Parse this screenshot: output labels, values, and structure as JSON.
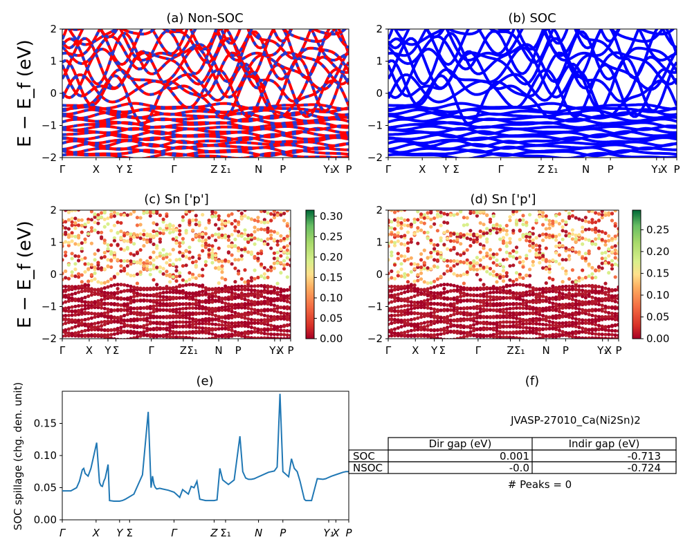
{
  "figure": {
    "titles": {
      "a": "(a) Non-SOC",
      "b": "(b) SOC",
      "c": "(c)  Sn ['p']",
      "d": "(d) Sn ['p']",
      "e": "(e)",
      "f": "(f)"
    },
    "band_ylabel": "E − E_f (eV)",
    "band_yticks": [
      "2",
      "1",
      "0",
      "−1",
      "−2"
    ],
    "kpath_labels": [
      "Γ",
      "X",
      "Y",
      "Σ",
      "Γ",
      "Z",
      "Σ₁",
      "N",
      "P",
      "Y₁",
      "X",
      "P"
    ],
    "colorbar_c_ticks": [
      "0.30",
      "0.25",
      "0.20",
      "0.15",
      "0.10",
      "0.05",
      "0.00"
    ],
    "colorbar_d_ticks": [
      "0.25",
      "0.20",
      "0.15",
      "0.10",
      "0.05",
      "0.00"
    ],
    "spillage_ylabel": "SOC spillage (chg. den. unit)",
    "spillage_yticks": [
      "0.15",
      "0.10",
      "0.05",
      "0.00"
    ],
    "material": "JVASP-27010_Ca(Ni2Sn)2",
    "table": {
      "headers": [
        "Dir gap (eV)",
        "Indir gap (eV)"
      ],
      "rows": [
        {
          "label": "SOC",
          "dir": "0.001",
          "indir": "-0.713"
        },
        {
          "label": "NSOC",
          "dir": "-0.0",
          "indir": "-0.724"
        }
      ]
    },
    "peaks": "# Peaks = 0"
  },
  "colors": {
    "nonsoc": "#ff0000",
    "nonsoc_overlay": "#1f3bd6",
    "soc": "#0000ff",
    "spillage": "#1f77b4"
  },
  "chart_data": [
    {
      "panel": "a",
      "type": "line",
      "title": "(a) Non-SOC",
      "ylabel": "E − E_f (eV)",
      "ylim": [
        -2,
        2
      ],
      "xticks": [
        "Γ",
        "X",
        "Y",
        "Σ",
        "Γ",
        "Z",
        "Σ₁",
        "N",
        "P",
        "Y₁",
        "X",
        "P"
      ],
      "series": [
        {
          "name": "",
          "values": []
        }
      ]
    },
    {
      "panel": "b",
      "type": "line",
      "title": "(b) SOC",
      "ylim": [
        -2,
        2
      ],
      "xticks": [
        "Γ",
        "X",
        "Y",
        "Σ",
        "Γ",
        "Z",
        "Σ₁",
        "N",
        "P",
        "Y₁",
        "X",
        "P"
      ]
    },
    {
      "panel": "c",
      "type": "scatter",
      "title": "(c)  Sn ['p']",
      "ylabel": "E − E_f (eV)",
      "ylim": [
        -2,
        2
      ],
      "colorbar_range": [
        0.0,
        0.31
      ]
    },
    {
      "panel": "d",
      "type": "scatter",
      "title": "(d) Sn ['p']",
      "ylim": [
        -2,
        2
      ],
      "colorbar_range": [
        0.0,
        0.29
      ]
    },
    {
      "panel": "e",
      "type": "line",
      "title": "(e)",
      "ylabel": "SOC spillage (chg. den. unit)",
      "ylim": [
        0,
        0.2
      ],
      "xticks": [
        "Γ",
        "X",
        "Y",
        "Σ",
        "Γ",
        "Z",
        "Σ₁",
        "N",
        "P",
        "Y₁",
        "X",
        "P"
      ],
      "series": [
        {
          "x": [
            0,
            0.03,
            0.05,
            0.06,
            0.07,
            0.075,
            0.08,
            0.09,
            0.1,
            0.12,
            0.125,
            0.13,
            0.135,
            0.14,
            0.145,
            0.15,
            0.16,
            0.165,
            0.18,
            0.19,
            0.2,
            0.21,
            0.22,
            0.25,
            0.28,
            0.3,
            0.31,
            0.315,
            0.32,
            0.325,
            0.33,
            0.34,
            0.35,
            0.37,
            0.39,
            0.41,
            0.42,
            0.44,
            0.45,
            0.46,
            0.47,
            0.48,
            0.5,
            0.52,
            0.53,
            0.54,
            0.55,
            0.56,
            0.58,
            0.6,
            0.62,
            0.63,
            0.64,
            0.65,
            0.655,
            0.66,
            0.67,
            0.68,
            0.7,
            0.72,
            0.74,
            0.75,
            0.76,
            0.77,
            0.79,
            0.8,
            0.81,
            0.82,
            0.83,
            0.845,
            0.85,
            0.86,
            0.87,
            0.89,
            0.91,
            0.92,
            0.925,
            0.94,
            0.96,
            0.98,
            0.99,
            1.0
          ],
          "y": [
            0.045,
            0.045,
            0.05,
            0.06,
            0.078,
            0.08,
            0.072,
            0.068,
            0.08,
            0.12,
            0.088,
            0.058,
            0.053,
            0.052,
            0.06,
            0.065,
            0.086,
            0.03,
            0.029,
            0.029,
            0.029,
            0.03,
            0.032,
            0.04,
            0.07,
            0.168,
            0.05,
            0.068,
            0.055,
            0.05,
            0.048,
            0.049,
            0.048,
            0.046,
            0.043,
            0.035,
            0.047,
            0.04,
            0.052,
            0.05,
            0.06,
            0.032,
            0.03,
            0.03,
            0.03,
            0.031,
            0.08,
            0.062,
            0.055,
            0.062,
            0.13,
            0.075,
            0.065,
            0.063,
            0.063,
            0.063,
            0.064,
            0.066,
            0.07,
            0.074,
            0.076,
            0.082,
            0.196,
            0.075,
            0.067,
            0.095,
            0.08,
            0.075,
            0.06,
            0.032,
            0.03,
            0.03,
            0.03,
            0.064,
            0.063,
            0.064,
            0.065,
            0.068,
            0.071,
            0.074,
            0.075,
            0.075
          ]
        }
      ]
    }
  ]
}
